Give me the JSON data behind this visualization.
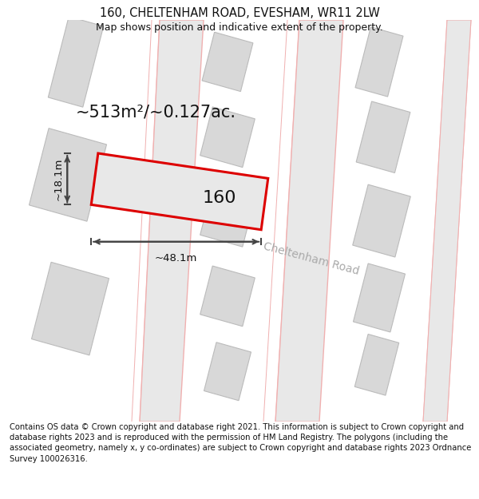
{
  "title": "160, CHELTENHAM ROAD, EVESHAM, WR11 2LW",
  "subtitle": "Map shows position and indicative extent of the property.",
  "area_text": "~513m²/~0.127ac.",
  "label_160": "160",
  "dim_width": "~48.1m",
  "dim_height": "~18.1m",
  "footer": "Contains OS data © Crown copyright and database right 2021. This information is subject to Crown copyright and database rights 2023 and is reproduced with the permission of HM Land Registry. The polygons (including the associated geometry, namely x, y co-ordinates) are subject to Crown copyright and database rights 2023 Ordnance Survey 100026316.",
  "bg_color": "#ffffff",
  "road_fill": "#e8e8e8",
  "road_outline": "#f0b0b0",
  "road_outline2": "#e8c0c0",
  "building_fill": "#d8d8d8",
  "building_edge": "#bbbbbb",
  "prop_fill": "#e8e8e8",
  "prop_edge": "#dd0000",
  "dim_color": "#444444",
  "text_color": "#111111",
  "road_label_color": "#aaaaaa",
  "title_fontsize": 10.5,
  "subtitle_fontsize": 9,
  "area_fontsize": 15,
  "label_fontsize": 16,
  "dim_fontsize": 9.5,
  "road_label_fontsize": 10,
  "footer_fontsize": 7.2
}
